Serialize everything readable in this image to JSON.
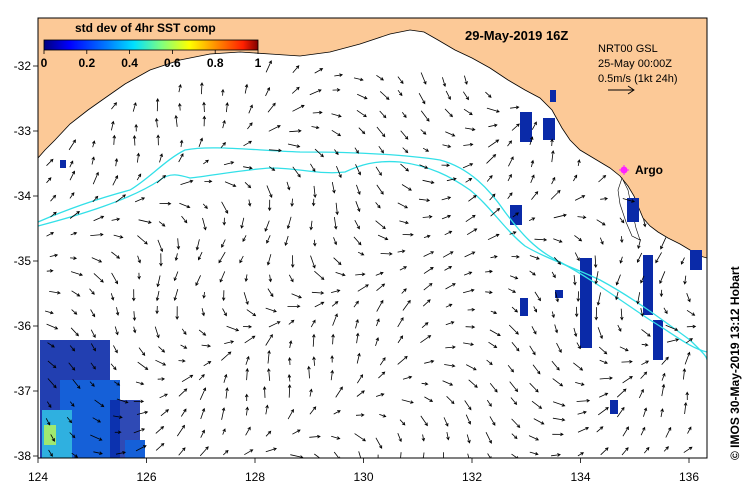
{
  "title": "29-May-2019 16Z",
  "legend": {
    "title": "std dev of 4hr SST comp",
    "ticks": [
      "0",
      "0.2",
      "0.4",
      "0.6",
      "0.8",
      "1"
    ],
    "colors": [
      "#00007f",
      "#0000ff",
      "#0066ff",
      "#00ccff",
      "#33ffcc",
      "#99ff66",
      "#ffff00",
      "#ff9900",
      "#ff3300",
      "#990000"
    ]
  },
  "current_info": {
    "line1": "NRT00 GSL",
    "line2": "25-May 00:00Z",
    "line3": "0.5m/s (1kt 24h)"
  },
  "argo_label": "Argo",
  "credit": "© IMOS 30-May-2019 13:12 Hobart",
  "axes": {
    "lon_labels": [
      "124",
      "126",
      "128",
      "130",
      "132",
      "134",
      "136"
    ],
    "lat_labels": [
      "-32",
      "-33",
      "-34",
      "-35",
      "-36",
      "-37",
      "-38"
    ]
  },
  "colors": {
    "land": "#fcc997",
    "ocean": "#ffffff",
    "contour": "#33e0e8",
    "argo": "#ff22ff",
    "sst_patch": "#0a2aa8"
  }
}
